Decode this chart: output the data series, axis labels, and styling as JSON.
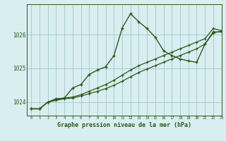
{
  "background_color": "#d8eef0",
  "grid_color": "#a0c8cc",
  "line_color": "#2d5a1b",
  "title": "Graphe pression niveau de la mer (hPa)",
  "xlim": [
    -0.5,
    23
  ],
  "ylim": [
    1023.6,
    1026.9
  ],
  "yticks": [
    1024,
    1025,
    1026
  ],
  "xticks": [
    0,
    1,
    2,
    3,
    4,
    5,
    6,
    7,
    8,
    9,
    10,
    11,
    12,
    13,
    14,
    15,
    16,
    17,
    18,
    19,
    20,
    21,
    22,
    23
  ],
  "series1_x": [
    0,
    1,
    2,
    3,
    4,
    5,
    6,
    7,
    8,
    9,
    10,
    11,
    12,
    13,
    14,
    15,
    16,
    17,
    18,
    19,
    20,
    21,
    22,
    23
  ],
  "series1_y": [
    1023.8,
    1023.8,
    1024.0,
    1024.05,
    1024.1,
    1024.12,
    1024.18,
    1024.25,
    1024.32,
    1024.4,
    1024.5,
    1024.62,
    1024.75,
    1024.88,
    1024.98,
    1025.08,
    1025.18,
    1025.28,
    1025.38,
    1025.48,
    1025.58,
    1025.72,
    1026.05,
    1026.1
  ],
  "series2_x": [
    0,
    1,
    2,
    3,
    4,
    5,
    6,
    7,
    8,
    9,
    10,
    11,
    12,
    13,
    14,
    15,
    16,
    17,
    18,
    19,
    20,
    21,
    22,
    23
  ],
  "series2_y": [
    1023.8,
    1023.8,
    1024.0,
    1024.08,
    1024.12,
    1024.15,
    1024.22,
    1024.32,
    1024.42,
    1024.52,
    1024.65,
    1024.8,
    1024.95,
    1025.08,
    1025.18,
    1025.28,
    1025.38,
    1025.48,
    1025.58,
    1025.68,
    1025.78,
    1025.88,
    1026.18,
    1026.12
  ],
  "series3_x": [
    0,
    1,
    2,
    3,
    4,
    5,
    6,
    7,
    8,
    9,
    10,
    11,
    12,
    13,
    14,
    15,
    16,
    17,
    18,
    19,
    20,
    21,
    22,
    23
  ],
  "series3_y": [
    1023.8,
    1023.8,
    1024.0,
    1024.1,
    1024.12,
    1024.42,
    1024.52,
    1024.82,
    1024.95,
    1025.05,
    1025.38,
    1026.2,
    1026.62,
    1026.38,
    1026.18,
    1025.92,
    1025.52,
    1025.38,
    1025.28,
    1025.22,
    1025.18,
    1025.72,
    1026.08,
    1026.08
  ]
}
